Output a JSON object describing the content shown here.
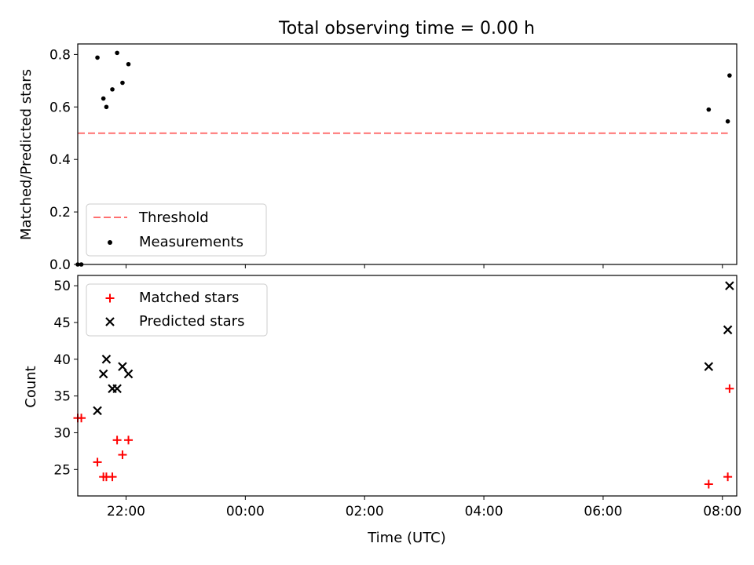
{
  "title": "Total observing time = 0.00 h",
  "chart_data": [
    {
      "type": "scatter",
      "ylabel": "Matched/Predicted stars",
      "xlim": [
        21.19,
        32.24
      ],
      "ylim": [
        0,
        0.84
      ],
      "yticks": [
        0.0,
        0.2,
        0.4,
        0.6,
        0.8
      ],
      "ytick_labels": [
        "0.0",
        "0.2",
        "0.4",
        "0.6",
        "0.8"
      ],
      "legend": {
        "position": "lower-left",
        "threshold_label": "Threshold",
        "measurements_label": "Measurements"
      },
      "threshold": {
        "value": 0.5,
        "x_start": 21.19,
        "x_end": 32.09,
        "color": "#ff7070"
      },
      "measurements": {
        "color": "#000000",
        "x": [
          21.19,
          21.25,
          21.52,
          21.62,
          21.67,
          21.77,
          21.85,
          21.94,
          22.04,
          31.77,
          32.09,
          32.12
        ],
        "y": [
          0.0,
          0.0,
          0.788,
          0.632,
          0.6,
          0.667,
          0.806,
          0.692,
          0.763,
          0.59,
          0.545,
          0.72
        ]
      }
    },
    {
      "type": "scatter",
      "xlabel": "Time (UTC)",
      "ylabel": "Count",
      "xlim": [
        21.19,
        32.24
      ],
      "ylim": [
        21.4,
        51.4
      ],
      "yticks": [
        25,
        30,
        35,
        40,
        45,
        50
      ],
      "ytick_labels": [
        "25",
        "30",
        "35",
        "40",
        "45",
        "50"
      ],
      "xticks": [
        22,
        24,
        26,
        28,
        30,
        32
      ],
      "xtick_labels": [
        "22:00",
        "00:00",
        "02:00",
        "04:00",
        "06:00",
        "08:00"
      ],
      "legend": {
        "position": "upper-left"
      },
      "series": [
        {
          "name": "Matched stars",
          "marker": "plus",
          "color": "#ff0000",
          "x": [
            21.19,
            21.25,
            21.52,
            21.62,
            21.67,
            21.77,
            21.85,
            21.94,
            22.04,
            31.77,
            32.09,
            32.12
          ],
          "y": [
            32,
            32,
            26,
            24,
            24,
            24,
            29,
            27,
            29,
            23,
            24,
            36
          ]
        },
        {
          "name": "Predicted stars",
          "marker": "x",
          "color": "#000000",
          "x": [
            21.52,
            21.62,
            21.67,
            21.77,
            21.85,
            21.94,
            22.04,
            31.77,
            32.09,
            32.12
          ],
          "y": [
            33,
            38,
            40,
            36,
            36,
            39,
            38,
            39,
            44,
            50
          ]
        }
      ]
    }
  ]
}
